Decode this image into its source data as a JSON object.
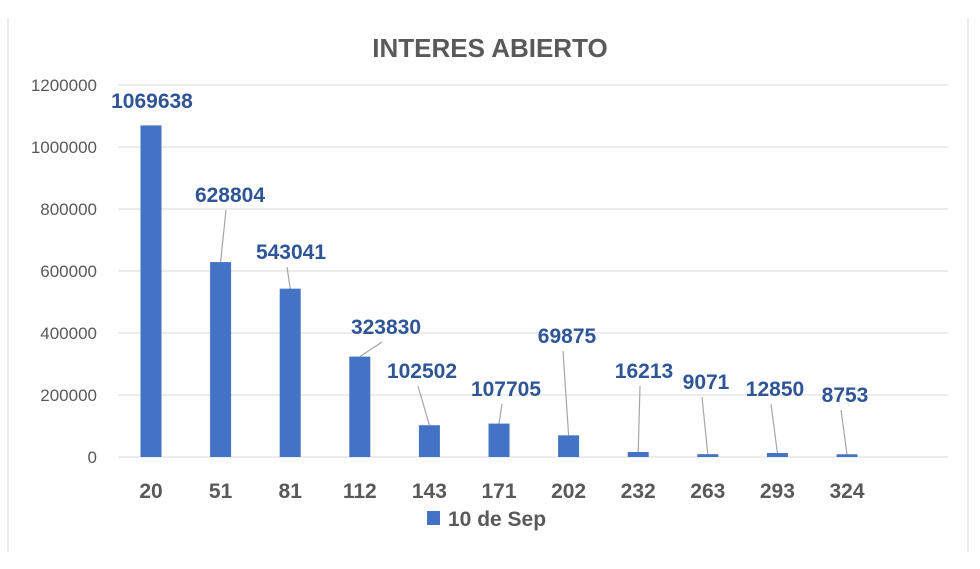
{
  "chart_data": {
    "type": "bar",
    "title": "INTERES ABIERTO",
    "categories": [
      "20",
      "51",
      "81",
      "112",
      "143",
      "171",
      "202",
      "232",
      "263",
      "293",
      "324"
    ],
    "series": [
      {
        "name": "10 de Sep",
        "values": [
          1069638,
          628804,
          543041,
          323830,
          102502,
          107705,
          69875,
          16213,
          9071,
          12850,
          8753
        ],
        "data_labels": [
          "1069638",
          "628804",
          "543041",
          "323830",
          "102502",
          "107705",
          "69875",
          "16213",
          "9071",
          "12850",
          "8753"
        ],
        "color": "#4472c4"
      }
    ],
    "ylim": [
      0,
      1200000
    ],
    "yticks": [
      0,
      200000,
      400000,
      600000,
      800000,
      1000000,
      1200000
    ],
    "ytick_labels": [
      "0",
      "200000",
      "400000",
      "600000",
      "800000",
      "1000000",
      "1200000"
    ],
    "grid": true,
    "legend": "bottom",
    "colors": {
      "bar": "#4472c4",
      "label": "#2f5597",
      "grid": "#d9d9d9",
      "text": "#595959",
      "leader": "#a6a6a6"
    }
  }
}
